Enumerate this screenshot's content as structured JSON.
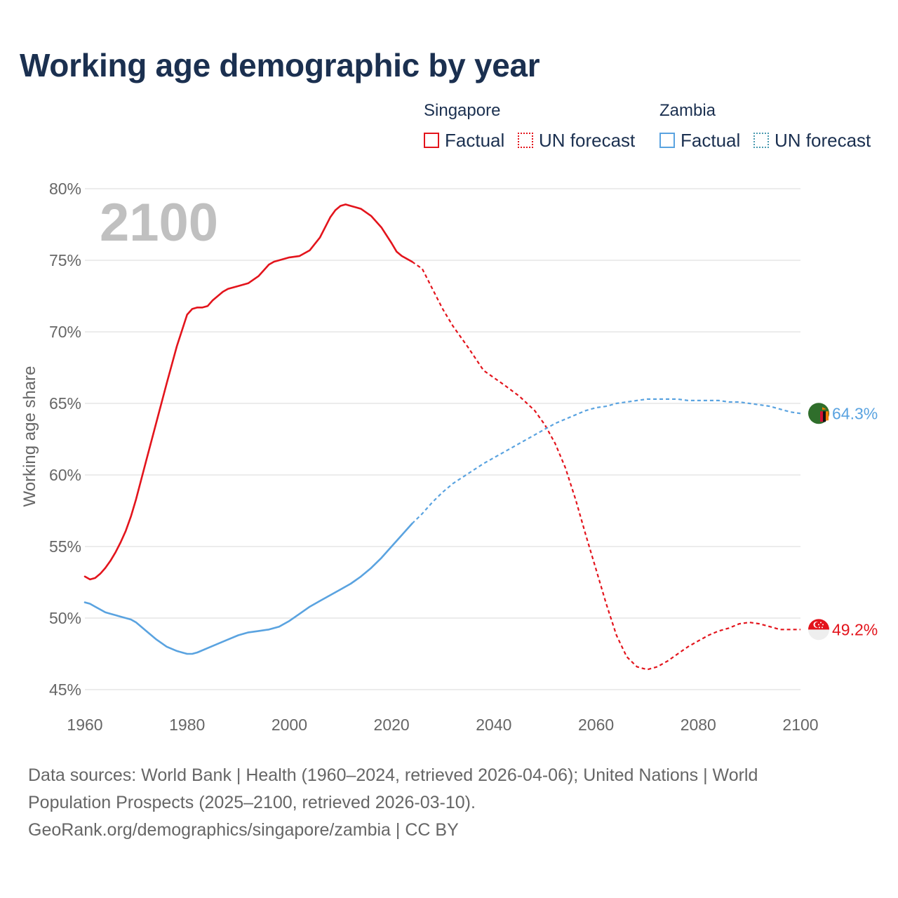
{
  "title": "Working age demographic by year",
  "legend": {
    "groups": [
      {
        "name": "Singapore",
        "color": "#e3141c",
        "factual_label": "Factual",
        "forecast_label": "UN forecast"
      },
      {
        "name": "Zambia",
        "color": "#5aa3e0",
        "forecast_color": "#4a9ab0",
        "factual_label": "Factual",
        "forecast_label": "UN forecast"
      }
    ]
  },
  "footer": {
    "line1": "Data sources: World Bank | Health (1960–2024, retrieved 2026-04-06); United Nations | World",
    "line2": "Population Prospects (2025–2100, retrieved 2026-03-10).",
    "line3": "GeoRank.org/demographics/singapore/zambia | CC BY"
  },
  "chart_data": {
    "type": "line",
    "title": "Working age demographic by year",
    "year_display": "2100",
    "xlabel": "",
    "ylabel": "Working age share",
    "xlim": [
      1960,
      2100
    ],
    "ylim": [
      45,
      80
    ],
    "x_ticks": [
      "1960",
      "1980",
      "2000",
      "2020",
      "2040",
      "2060",
      "2080",
      "2100"
    ],
    "y_ticks": [
      "45%",
      "50%",
      "55%",
      "60%",
      "65%",
      "70%",
      "75%",
      "80%"
    ],
    "factual_end_year": 2024,
    "series": [
      {
        "name": "Singapore",
        "color": "#e3141c",
        "end_label": "49.2%",
        "flag_icon": "singapore-flag-icon",
        "x": [
          1960,
          1961,
          1962,
          1963,
          1964,
          1965,
          1966,
          1967,
          1968,
          1969,
          1970,
          1972,
          1974,
          1976,
          1978,
          1980,
          1981,
          1982,
          1983,
          1984,
          1985,
          1986,
          1987,
          1988,
          1990,
          1992,
          1994,
          1995,
          1996,
          1997,
          1998,
          2000,
          2002,
          2004,
          2006,
          2008,
          2009,
          2010,
          2011,
          2012,
          2013,
          2014,
          2016,
          2018,
          2020,
          2021,
          2022,
          2024,
          2026,
          2028,
          2030,
          2032,
          2035,
          2038,
          2040,
          2042,
          2045,
          2048,
          2050,
          2052,
          2054,
          2056,
          2058,
          2060,
          2062,
          2064,
          2066,
          2068,
          2070,
          2072,
          2074,
          2076,
          2078,
          2080,
          2082,
          2084,
          2086,
          2088,
          2090,
          2092,
          2094,
          2096,
          2098,
          2100
        ],
        "values": [
          52.9,
          52.7,
          52.8,
          53.1,
          53.5,
          54.0,
          54.6,
          55.3,
          56.1,
          57.1,
          58.3,
          61.0,
          63.7,
          66.4,
          69.0,
          71.2,
          71.6,
          71.7,
          71.7,
          71.8,
          72.2,
          72.5,
          72.8,
          73.0,
          73.2,
          73.4,
          73.9,
          74.3,
          74.7,
          74.9,
          75.0,
          75.2,
          75.3,
          75.7,
          76.6,
          78.0,
          78.5,
          78.8,
          78.9,
          78.8,
          78.7,
          78.6,
          78.1,
          77.3,
          76.2,
          75.6,
          75.3,
          74.9,
          74.4,
          73.0,
          71.6,
          70.4,
          68.9,
          67.3,
          66.8,
          66.3,
          65.5,
          64.5,
          63.5,
          62.2,
          60.5,
          58.3,
          55.8,
          53.4,
          51.0,
          48.8,
          47.3,
          46.6,
          46.4,
          46.6,
          47.0,
          47.5,
          48.0,
          48.4,
          48.8,
          49.1,
          49.3,
          49.6,
          49.7,
          49.6,
          49.4,
          49.2,
          49.2,
          49.2
        ]
      },
      {
        "name": "Zambia",
        "color": "#5aa3e0",
        "end_label": "64.3%",
        "flag_icon": "zambia-flag-icon",
        "x": [
          1960,
          1961,
          1962,
          1963,
          1964,
          1965,
          1966,
          1967,
          1968,
          1969,
          1970,
          1972,
          1974,
          1976,
          1978,
          1979,
          1980,
          1981,
          1982,
          1984,
          1986,
          1988,
          1990,
          1992,
          1994,
          1996,
          1998,
          2000,
          2002,
          2004,
          2006,
          2008,
          2010,
          2012,
          2014,
          2016,
          2018,
          2020,
          2022,
          2024,
          2026,
          2028,
          2030,
          2032,
          2035,
          2038,
          2040,
          2042,
          2045,
          2048,
          2050,
          2052,
          2054,
          2056,
          2058,
          2060,
          2062,
          2064,
          2066,
          2068,
          2070,
          2072,
          2074,
          2076,
          2078,
          2080,
          2082,
          2084,
          2086,
          2088,
          2090,
          2092,
          2094,
          2096,
          2098,
          2100
        ],
        "values": [
          51.1,
          51.0,
          50.8,
          50.6,
          50.4,
          50.3,
          50.2,
          50.1,
          50.0,
          49.9,
          49.7,
          49.1,
          48.5,
          48.0,
          47.7,
          47.6,
          47.5,
          47.5,
          47.6,
          47.9,
          48.2,
          48.5,
          48.8,
          49.0,
          49.1,
          49.2,
          49.4,
          49.8,
          50.3,
          50.8,
          51.2,
          51.6,
          52.0,
          52.4,
          52.9,
          53.5,
          54.2,
          55.0,
          55.8,
          56.6,
          57.3,
          58.1,
          58.8,
          59.4,
          60.1,
          60.8,
          61.2,
          61.6,
          62.2,
          62.8,
          63.2,
          63.6,
          63.9,
          64.2,
          64.5,
          64.7,
          64.8,
          65.0,
          65.1,
          65.2,
          65.3,
          65.3,
          65.3,
          65.3,
          65.2,
          65.2,
          65.2,
          65.2,
          65.1,
          65.1,
          65.0,
          64.9,
          64.8,
          64.6,
          64.4,
          64.3
        ]
      }
    ]
  }
}
